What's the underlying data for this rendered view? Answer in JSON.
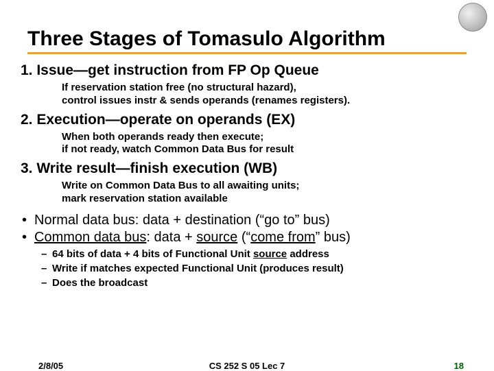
{
  "title": "Three Stages of Tomasulo Algorithm",
  "stages": [
    {
      "head": "1. Issue—get instruction from FP Op Queue",
      "detail": "If reservation station free (no structural hazard),\ncontrol issues instr & sends operands (renames registers)."
    },
    {
      "head": "2. Execution—operate on operands (EX)",
      "detail": "When both operands ready then execute;\n if not ready, watch Common Data Bus for result"
    },
    {
      "head": "3. Write result—finish execution (WB)",
      "detail": "Write on Common Data Bus to all awaiting units;\nmark reservation station available"
    }
  ],
  "bullets": {
    "b1_pre": "Normal data bus: data + destination (“go to” bus)",
    "b2_pre": "Common data bus",
    "b2_mid": ": data + ",
    "b2_src": "source",
    "b2_open": "  (“",
    "b2_cf": "come from",
    "b2_close": "” bus)"
  },
  "subs": {
    "s1a": "64 bits of data + 4 bits of Functional Unit  ",
    "s1b": "source",
    "s1c": " address",
    "s2": "Write if matches expected Functional Unit (produces result)",
    "s3": "Does the broadcast"
  },
  "footer": {
    "date": "2/8/05",
    "center": "CS 252 S 05 Lec 7",
    "page": "18"
  },
  "colors": {
    "underline": "#e8a23c",
    "page_num": "#006000"
  }
}
